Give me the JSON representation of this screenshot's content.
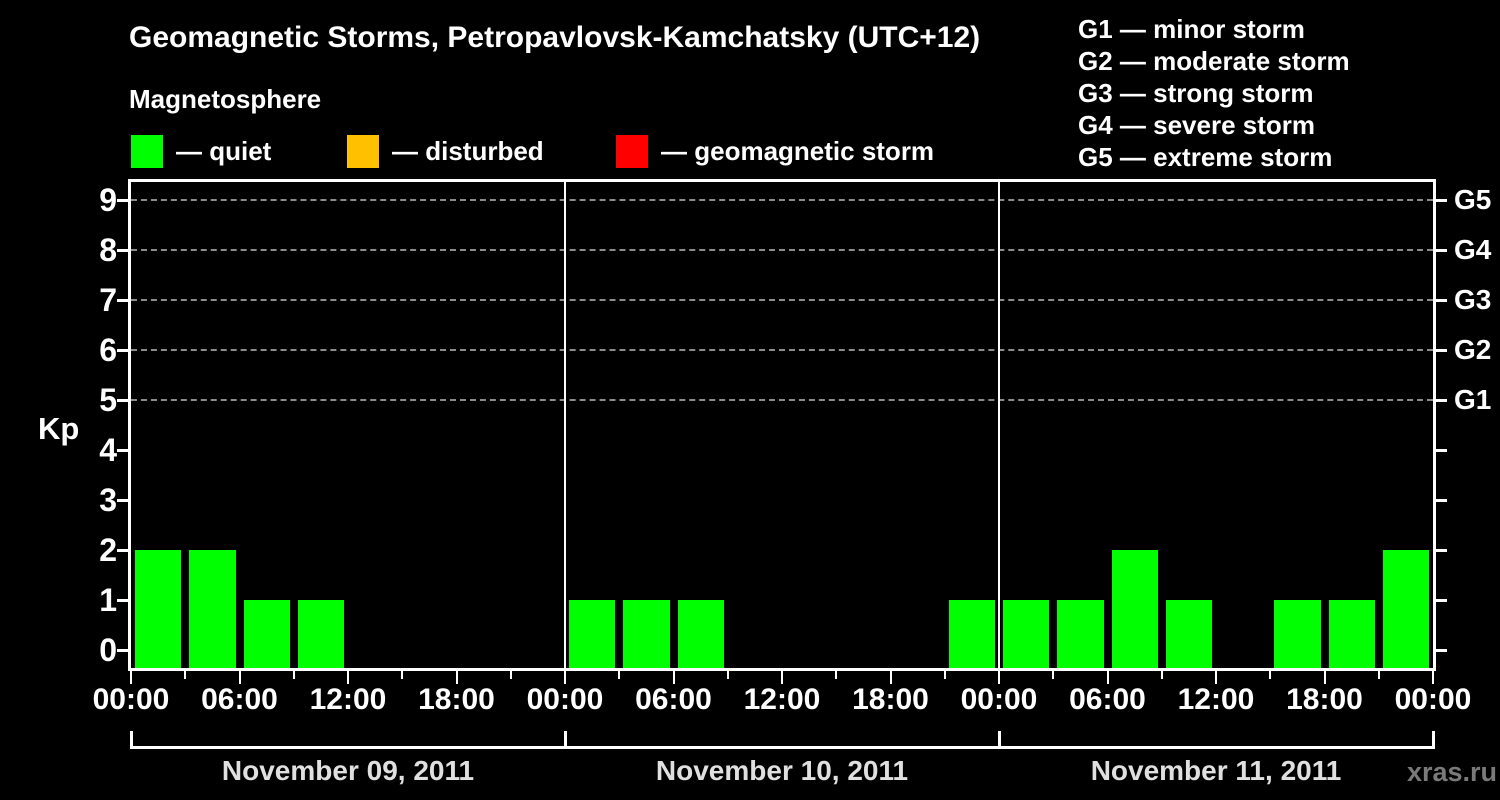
{
  "title": "Geomagnetic Storms, Petropavlovsk-Kamchatsky (UTC+12)",
  "watermark": "xras.ru",
  "magnetosphere_legend": {
    "heading": "Magnetosphere",
    "items": [
      {
        "name": "quiet",
        "label": "— quiet",
        "color": "#00ff00"
      },
      {
        "name": "disturbed",
        "label": "— disturbed",
        "color": "#ffc000"
      },
      {
        "name": "geomagnetic-storm",
        "label": "— geomagnetic storm",
        "color": "#ff0000"
      }
    ]
  },
  "g_scale_legend": [
    "G1 — minor storm",
    "G2 — moderate storm",
    "G3 — strong storm",
    "G4 — severe storm",
    "G5 — extreme storm"
  ],
  "chart_data": {
    "type": "bar",
    "ylabel": "Kp",
    "ylim": [
      0,
      9
    ],
    "y_ticks": [
      0,
      1,
      2,
      3,
      4,
      5,
      6,
      7,
      8,
      9
    ],
    "dashed_gridlines_at_kp": [
      5,
      6,
      7,
      8,
      9
    ],
    "right_axis_labels": [
      {
        "kp": 5,
        "label": "G1"
      },
      {
        "kp": 6,
        "label": "G2"
      },
      {
        "kp": 7,
        "label": "G3"
      },
      {
        "kp": 8,
        "label": "G4"
      },
      {
        "kp": 9,
        "label": "G5"
      }
    ],
    "x_major_tick_labels_per_day": [
      "00:00",
      "06:00",
      "12:00",
      "18:00"
    ],
    "x_final_tick_label": "00:00",
    "hours_per_bar": 3,
    "bar_color": "#00ff00",
    "grid": "dashed horizontal lines at Kp 5–9 only",
    "legend_position": "top",
    "days": [
      {
        "date": "November 09, 2011",
        "kp_values": [
          2,
          2,
          1,
          1,
          0,
          0,
          0,
          0
        ]
      },
      {
        "date": "November 10, 2011",
        "kp_values": [
          1,
          1,
          1,
          0,
          0,
          0,
          0,
          1
        ]
      },
      {
        "date": "November 11, 2011",
        "kp_values": [
          1,
          1,
          2,
          1,
          0,
          1,
          1,
          2
        ]
      }
    ]
  },
  "colors": {
    "background": "#000000",
    "axis": "#ffffff",
    "text": "#ffffff",
    "date_text": "#e0e0e0",
    "gridline": "#8c8c8c",
    "watermark": "#7a7a7a"
  }
}
